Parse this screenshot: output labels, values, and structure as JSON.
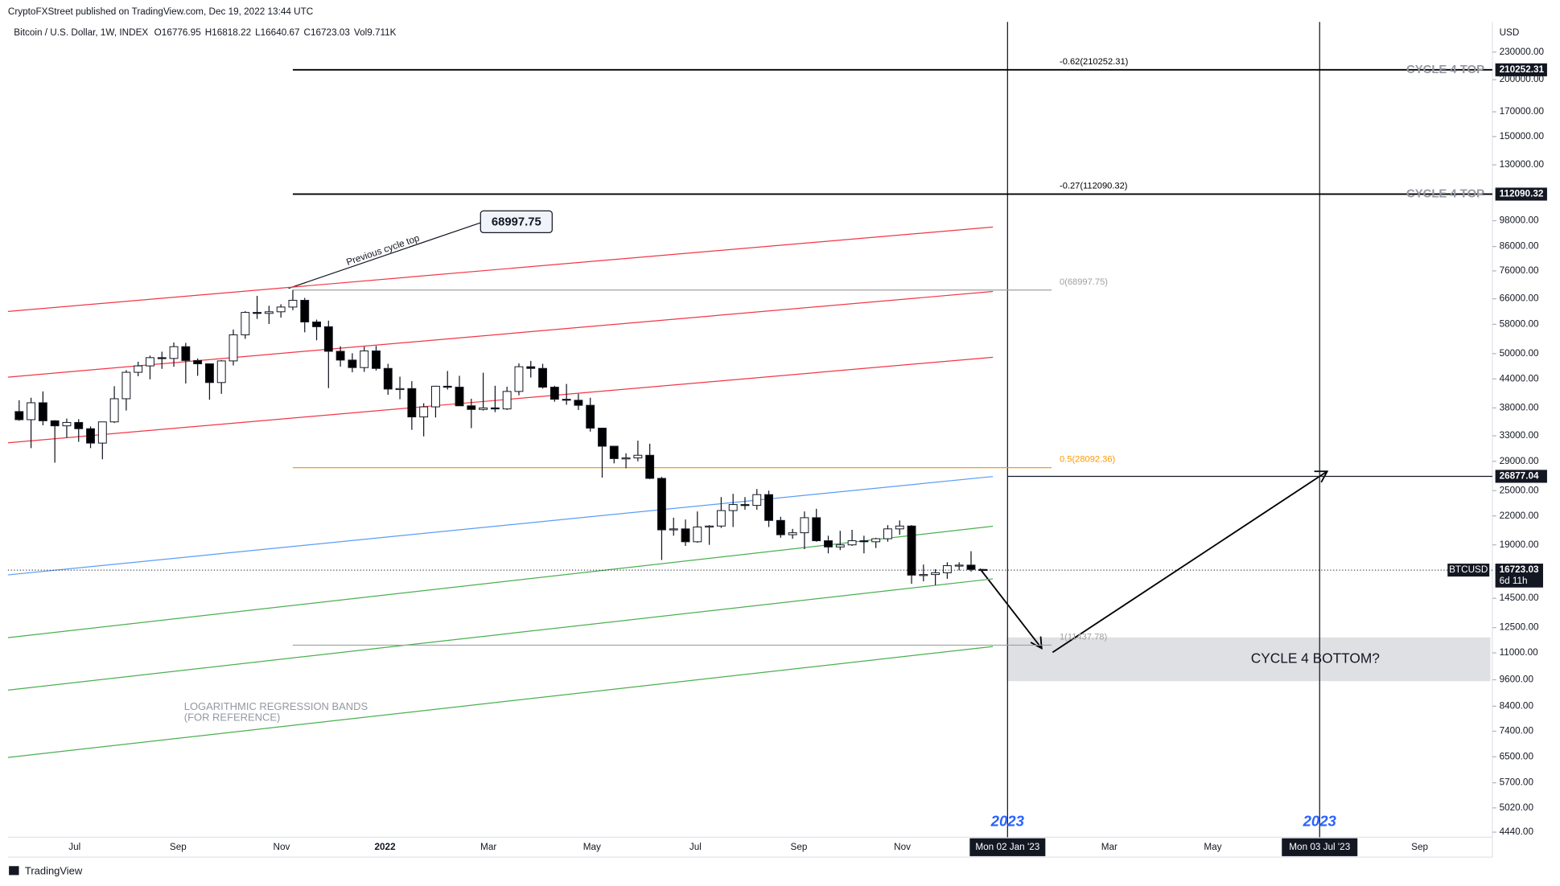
{
  "chart_data": {
    "type": "candlestick",
    "publisher": "CryptoFXStreet published on TradingView.com, Dec 19, 2022 13:44 UTC",
    "symbol": "Bitcoin / U.S. Dollar, 1W, INDEX",
    "ohlc_prefix": [
      "O",
      "H",
      "L",
      "C"
    ],
    "volume": "Vol9.711K",
    "currency": "USD",
    "ticker": "BTCUSD",
    "countdown": "6d 11h",
    "brand": "TradingView",
    "log_scale": true,
    "grid": false,
    "up_color": "#ffffff",
    "down_color": "#000000",
    "outline_color": "#131722",
    "ylim": [
      4370,
      268000
    ],
    "yticks": [
      {
        "value": 230000,
        "label": "230000.00"
      },
      {
        "value": 200000,
        "label": "200000.00"
      },
      {
        "value": 170000,
        "label": "170000.00"
      },
      {
        "value": 150000,
        "label": "150000.00"
      },
      {
        "value": 130000,
        "label": "130000.00"
      },
      {
        "value": 98000,
        "label": "98000.00"
      },
      {
        "value": 86000,
        "label": "86000.00"
      },
      {
        "value": 76000,
        "label": "76000.00"
      },
      {
        "value": 66000,
        "label": "66000.00"
      },
      {
        "value": 58000,
        "label": "58000.00"
      },
      {
        "value": 50000,
        "label": "50000.00"
      },
      {
        "value": 44000,
        "label": "44000.00"
      },
      {
        "value": 38000,
        "label": "38000.00"
      },
      {
        "value": 33000,
        "label": "33000.00"
      },
      {
        "value": 29000,
        "label": "29000.00"
      },
      {
        "value": 25000,
        "label": "25000.00"
      },
      {
        "value": 22000,
        "label": "22000.00"
      },
      {
        "value": 19000,
        "label": "19000.00"
      },
      {
        "value": 14500,
        "label": "14500.00"
      },
      {
        "value": 12500,
        "label": "12500.00"
      },
      {
        "value": 11000,
        "label": "11000.00"
      },
      {
        "value": 9600,
        "label": "9600.00"
      },
      {
        "value": 8400,
        "label": "8400.00"
      },
      {
        "value": 7400,
        "label": "7400.00"
      },
      {
        "value": 6500,
        "label": "6500.00"
      },
      {
        "value": 5700,
        "label": "5700.00"
      },
      {
        "value": 5020,
        "label": "5020.00"
      },
      {
        "value": 4440,
        "label": "4440.00"
      }
    ],
    "xticks": [
      {
        "value": "2021-07",
        "label": "Jul"
      },
      {
        "value": "2021-09",
        "label": "Sep"
      },
      {
        "value": "2021-11",
        "label": "Nov"
      },
      {
        "value": "2022-01",
        "label": "2022"
      },
      {
        "value": "2022-03",
        "label": "Mar"
      },
      {
        "value": "2022-05",
        "label": "May"
      },
      {
        "value": "2022-07",
        "label": "Jul"
      },
      {
        "value": "2022-09",
        "label": "Sep"
      },
      {
        "value": "2022-11",
        "label": "Nov"
      },
      {
        "value": "2023-03",
        "label": "Mar"
      },
      {
        "value": "2023-05",
        "label": "May"
      },
      {
        "value": "2023-09",
        "label": "Sep"
      }
    ],
    "markers": [
      {
        "date": "2023-01-02",
        "year": "2023",
        "label": "Mon 02 Jan '23"
      },
      {
        "date": "2023-07-03",
        "year": "2023",
        "label": "Mon 03 Jul '23"
      }
    ],
    "candles": [
      {
        "open": 37300,
        "high": 39500,
        "low": 35600,
        "close": 35800
      },
      {
        "open": 35800,
        "high": 40000,
        "low": 31000,
        "close": 39000
      },
      {
        "open": 39000,
        "high": 41300,
        "low": 34800,
        "close": 35600
      },
      {
        "open": 35600,
        "high": 35700,
        "low": 28800,
        "close": 34700
      },
      {
        "open": 34700,
        "high": 36000,
        "low": 32700,
        "close": 35300
      },
      {
        "open": 35300,
        "high": 35900,
        "low": 32000,
        "close": 34200
      },
      {
        "open": 34200,
        "high": 34600,
        "low": 31000,
        "close": 31800
      },
      {
        "open": 31800,
        "high": 35400,
        "low": 29300,
        "close": 35400
      },
      {
        "open": 35400,
        "high": 42400,
        "low": 35200,
        "close": 39800
      },
      {
        "open": 39800,
        "high": 46000,
        "low": 37500,
        "close": 45500
      },
      {
        "open": 45500,
        "high": 48000,
        "low": 44600,
        "close": 47000
      },
      {
        "open": 47000,
        "high": 49500,
        "low": 43900,
        "close": 49000
      },
      {
        "open": 49000,
        "high": 50500,
        "low": 46300,
        "close": 48800
      },
      {
        "open": 48800,
        "high": 52900,
        "low": 46800,
        "close": 51800
      },
      {
        "open": 51800,
        "high": 52800,
        "low": 43000,
        "close": 48300
      },
      {
        "open": 48300,
        "high": 48800,
        "low": 44700,
        "close": 47500
      },
      {
        "open": 47500,
        "high": 47500,
        "low": 39600,
        "close": 43200
      },
      {
        "open": 43200,
        "high": 48400,
        "low": 40800,
        "close": 48200
      },
      {
        "open": 48200,
        "high": 56500,
        "low": 47100,
        "close": 55000
      },
      {
        "open": 55000,
        "high": 62000,
        "low": 53900,
        "close": 61600
      },
      {
        "open": 61600,
        "high": 67000,
        "low": 59600,
        "close": 61300
      },
      {
        "open": 61300,
        "high": 63700,
        "low": 58100,
        "close": 61800
      },
      {
        "open": 61800,
        "high": 64200,
        "low": 60000,
        "close": 63300
      },
      {
        "open": 63300,
        "high": 68997.75,
        "low": 62300,
        "close": 65500
      },
      {
        "open": 65500,
        "high": 66300,
        "low": 55700,
        "close": 58700
      },
      {
        "open": 58700,
        "high": 59400,
        "low": 53500,
        "close": 57300
      },
      {
        "open": 57300,
        "high": 59100,
        "low": 42000,
        "close": 50600
      },
      {
        "open": 50600,
        "high": 51900,
        "low": 46800,
        "close": 48400
      },
      {
        "open": 48400,
        "high": 50100,
        "low": 45500,
        "close": 46600
      },
      {
        "open": 46600,
        "high": 51800,
        "low": 45600,
        "close": 50700
      },
      {
        "open": 50700,
        "high": 52000,
        "low": 45900,
        "close": 46400
      },
      {
        "open": 46400,
        "high": 47500,
        "low": 40600,
        "close": 41800
      },
      {
        "open": 41800,
        "high": 44500,
        "low": 39700,
        "close": 41900
      },
      {
        "open": 41900,
        "high": 43500,
        "low": 34000,
        "close": 36300
      },
      {
        "open": 36300,
        "high": 38900,
        "low": 32900,
        "close": 38200
      },
      {
        "open": 38200,
        "high": 42500,
        "low": 36200,
        "close": 42400
      },
      {
        "open": 42400,
        "high": 45800,
        "low": 41700,
        "close": 42200
      },
      {
        "open": 42200,
        "high": 44700,
        "low": 39500,
        "close": 38400
      },
      {
        "open": 38400,
        "high": 39800,
        "low": 34300,
        "close": 37700
      },
      {
        "open": 37700,
        "high": 45400,
        "low": 37500,
        "close": 38000
      },
      {
        "open": 38000,
        "high": 42500,
        "low": 37200,
        "close": 37800
      },
      {
        "open": 37800,
        "high": 42300,
        "low": 37600,
        "close": 41300
      },
      {
        "open": 41300,
        "high": 47600,
        "low": 40500,
        "close": 46800
      },
      {
        "open": 46800,
        "high": 48200,
        "low": 44300,
        "close": 46400
      },
      {
        "open": 46400,
        "high": 47500,
        "low": 41900,
        "close": 42200
      },
      {
        "open": 42200,
        "high": 42500,
        "low": 39200,
        "close": 39700
      },
      {
        "open": 39700,
        "high": 42900,
        "low": 38600,
        "close": 39500
      },
      {
        "open": 39500,
        "high": 40800,
        "low": 37600,
        "close": 38500
      },
      {
        "open": 38500,
        "high": 40000,
        "low": 33700,
        "close": 34300
      },
      {
        "open": 34300,
        "high": 34300,
        "low": 26700,
        "close": 31300
      },
      {
        "open": 31300,
        "high": 31300,
        "low": 28700,
        "close": 29400
      },
      {
        "open": 29400,
        "high": 30200,
        "low": 28000,
        "close": 29500
      },
      {
        "open": 29500,
        "high": 32200,
        "low": 29000,
        "close": 29900
      },
      {
        "open": 29900,
        "high": 31700,
        "low": 26500,
        "close": 26600
      },
      {
        "open": 26600,
        "high": 26800,
        "low": 17600,
        "close": 20500
      },
      {
        "open": 20500,
        "high": 21800,
        "low": 19900,
        "close": 20600
      },
      {
        "open": 20600,
        "high": 21600,
        "low": 18900,
        "close": 19300
      },
      {
        "open": 19300,
        "high": 22500,
        "low": 19200,
        "close": 20800
      },
      {
        "open": 20800,
        "high": 21000,
        "low": 19000,
        "close": 20900
      },
      {
        "open": 20900,
        "high": 24200,
        "low": 20700,
        "close": 22600
      },
      {
        "open": 22600,
        "high": 24600,
        "low": 20800,
        "close": 23300
      },
      {
        "open": 23300,
        "high": 24200,
        "low": 22700,
        "close": 23200
      },
      {
        "open": 23200,
        "high": 25200,
        "low": 22700,
        "close": 24500
      },
      {
        "open": 24500,
        "high": 25000,
        "low": 20800,
        "close": 21500
      },
      {
        "open": 21500,
        "high": 21900,
        "low": 19700,
        "close": 20000
      },
      {
        "open": 20000,
        "high": 20600,
        "low": 19600,
        "close": 20200
      },
      {
        "open": 20200,
        "high": 22500,
        "low": 18600,
        "close": 21800
      },
      {
        "open": 21800,
        "high": 22800,
        "low": 19300,
        "close": 19400
      },
      {
        "open": 19400,
        "high": 19900,
        "low": 18200,
        "close": 18800
      },
      {
        "open": 18800,
        "high": 20400,
        "low": 18500,
        "close": 19000
      },
      {
        "open": 19000,
        "high": 20500,
        "low": 18900,
        "close": 19400
      },
      {
        "open": 19400,
        "high": 19900,
        "low": 18200,
        "close": 19300
      },
      {
        "open": 19300,
        "high": 19700,
        "low": 18700,
        "close": 19600
      },
      {
        "open": 19600,
        "high": 21000,
        "low": 19300,
        "close": 20600
      },
      {
        "open": 20600,
        "high": 21500,
        "low": 20000,
        "close": 20900
      },
      {
        "open": 20900,
        "high": 21000,
        "low": 15600,
        "close": 16300
      },
      {
        "open": 16300,
        "high": 17200,
        "low": 15800,
        "close": 16350
      },
      {
        "open": 16350,
        "high": 16800,
        "low": 15500,
        "close": 16500
      },
      {
        "open": 16500,
        "high": 17400,
        "low": 16000,
        "close": 17100
      },
      {
        "open": 17100,
        "high": 17400,
        "low": 16700,
        "close": 17150
      },
      {
        "open": 17150,
        "high": 18400,
        "low": 16600,
        "close": 16776.95
      },
      {
        "open": 16776.95,
        "high": 16818.22,
        "low": 16640.67,
        "close": 16723.03
      }
    ],
    "bands": [
      {
        "color": "#f23645",
        "values": [
          61900,
          94900
        ]
      },
      {
        "color": "#f23645",
        "values": [
          44400,
          68500
        ]
      },
      {
        "color": "#f23645",
        "values": [
          31850,
          49100
        ]
      },
      {
        "color": "#5b9cf6",
        "values": [
          16320,
          26850
        ]
      },
      {
        "color": "#4caf50",
        "values": [
          11880,
          20880
        ]
      },
      {
        "color": "#4caf50",
        "values": [
          9110,
          16000
        ]
      },
      {
        "color": "#4caf50",
        "values": [
          6480,
          11360
        ]
      }
    ],
    "levels": [
      {
        "text": "-0.62(210252.31)",
        "value": 210252.31,
        "tag": "CYCLE 4 TOP",
        "color": "#000000",
        "extend": true
      },
      {
        "text": "-0.27(112090.32)",
        "value": 112090.32,
        "tag": "CYCLE 4 TOP",
        "color": "#000000",
        "extend": true
      },
      {
        "text": "0(68997.75)",
        "value": 68997.75,
        "color": "#a0a0a0",
        "extend": false
      },
      {
        "text": "0.5(28092.36)",
        "value": 28092.36,
        "color": "#ff9800",
        "extend": false
      },
      {
        "text": "1(11437.78)",
        "value": 11437.78,
        "color": "#a0a0a0",
        "extend": false
      }
    ],
    "target": 26877.04,
    "annotations": {
      "previous_top": "Previous cycle top",
      "top_label": 68997.75,
      "bands_title": "LOGARITHMIC REGRESSION BANDS",
      "bands_note": "(FOR REFERENCE)",
      "bottom": "CYCLE 4 BOTTOM?"
    }
  }
}
